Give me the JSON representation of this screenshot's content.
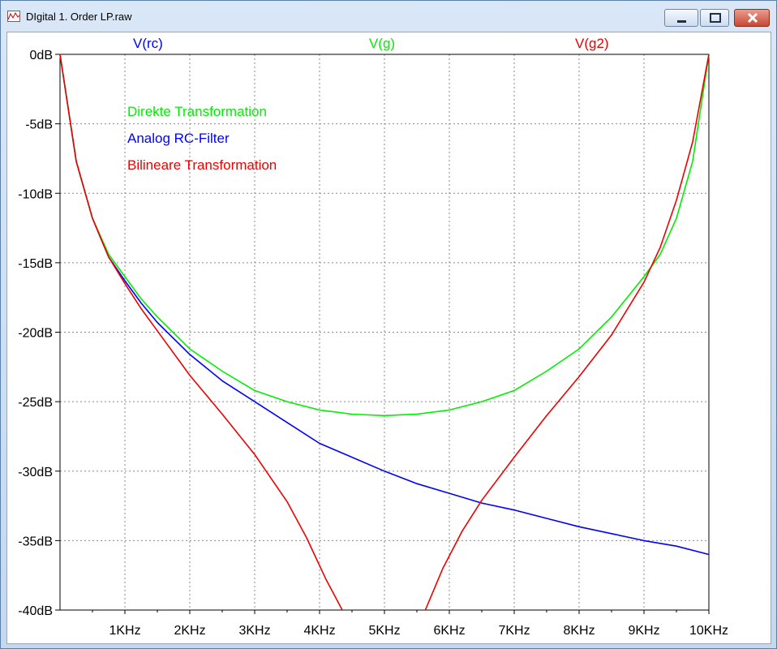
{
  "window": {
    "title": "DIgital 1. Order LP.raw",
    "controls": {
      "minimize": "minimize",
      "maximize": "maximize",
      "close": "close"
    }
  },
  "colors": {
    "rc": "#0000ff",
    "g": "#00ee00",
    "g2": "#ee0000",
    "grid": "#8a8a8a",
    "background": "#ffffff"
  },
  "chart_data": {
    "type": "line",
    "title": "",
    "xlabel": "",
    "ylabel": "",
    "xlim": [
      0,
      10000
    ],
    "ylim": [
      -40,
      0
    ],
    "grid": true,
    "x_ticks": [
      {
        "value": 1000,
        "label": "1KHz"
      },
      {
        "value": 2000,
        "label": "2KHz"
      },
      {
        "value": 3000,
        "label": "3KHz"
      },
      {
        "value": 4000,
        "label": "4KHz"
      },
      {
        "value": 5000,
        "label": "5KHz"
      },
      {
        "value": 6000,
        "label": "6KHz"
      },
      {
        "value": 7000,
        "label": "7KHz"
      },
      {
        "value": 8000,
        "label": "8KHz"
      },
      {
        "value": 9000,
        "label": "9KHz"
      },
      {
        "value": 10000,
        "label": "10KHz"
      }
    ],
    "y_ticks": [
      {
        "value": 0,
        "label": "0dB"
      },
      {
        "value": -5,
        "label": "-5dB"
      },
      {
        "value": -10,
        "label": "-10dB"
      },
      {
        "value": -15,
        "label": "-15dB"
      },
      {
        "value": -20,
        "label": "-20dB"
      },
      {
        "value": -25,
        "label": "-25dB"
      },
      {
        "value": -30,
        "label": "-30dB"
      },
      {
        "value": -35,
        "label": "-35dB"
      },
      {
        "value": -40,
        "label": "-40dB"
      }
    ],
    "trace_labels": [
      {
        "id": "rc",
        "label": "V(rc)",
        "color": "#0000ff"
      },
      {
        "id": "g",
        "label": "V(g)",
        "color": "#00ee00"
      },
      {
        "id": "g2",
        "label": "V(g2)",
        "color": "#ee0000"
      }
    ],
    "legend": {
      "placement": "top-left",
      "entries": [
        {
          "label": "Direkte Transformation",
          "color": "#00ee00"
        },
        {
          "label": "Analog RC-Filter",
          "color": "#0000ff"
        },
        {
          "label": "Bilineare Transformation",
          "color": "#ee0000"
        }
      ]
    },
    "series": [
      {
        "name": "V(rc)",
        "color": "#0000ff",
        "x": [
          0,
          250,
          500,
          750,
          1000,
          1250,
          1500,
          2000,
          2500,
          3000,
          3500,
          4000,
          4500,
          5000,
          5500,
          6000,
          6500,
          7000,
          7500,
          8000,
          8500,
          9000,
          9500,
          10000
        ],
        "y": [
          0,
          -7.7,
          -11.8,
          -14.6,
          -16.3,
          -17.9,
          -19.3,
          -21.6,
          -23.5,
          -25.0,
          -26.5,
          -28.0,
          -29.0,
          -30.0,
          -30.9,
          -31.6,
          -32.3,
          -32.8,
          -33.4,
          -34.0,
          -34.5,
          -35.0,
          -35.4,
          -36.0
        ]
      },
      {
        "name": "V(g)",
        "color": "#00ee00",
        "x": [
          0,
          250,
          500,
          750,
          1000,
          1250,
          1500,
          2000,
          2500,
          3000,
          3500,
          4000,
          4500,
          5000,
          5500,
          6000,
          6500,
          7000,
          7500,
          8000,
          8500,
          9000,
          9250,
          9500,
          9750,
          10000
        ],
        "y": [
          0,
          -7.7,
          -11.8,
          -14.4,
          -16.0,
          -17.6,
          -18.9,
          -21.2,
          -22.8,
          -24.2,
          -25.0,
          -25.6,
          -25.9,
          -26.0,
          -25.9,
          -25.6,
          -25.0,
          -24.2,
          -22.8,
          -21.2,
          -18.9,
          -16.0,
          -14.4,
          -11.8,
          -7.7,
          0
        ]
      },
      {
        "name": "V(g2)",
        "color": "#ee0000",
        "x": [
          0,
          250,
          500,
          750,
          1000,
          1250,
          1500,
          2000,
          2500,
          3000,
          3500,
          3800,
          4100,
          4350,
          5630,
          5900,
          6200,
          6500,
          7000,
          7500,
          8000,
          8500,
          9000,
          9250,
          9500,
          9750,
          10000
        ],
        "y": [
          0,
          -7.7,
          -11.8,
          -14.6,
          -16.5,
          -18.3,
          -19.9,
          -23.1,
          -25.9,
          -28.8,
          -32.2,
          -34.8,
          -37.8,
          -40.0,
          -40.0,
          -37.0,
          -34.3,
          -32.1,
          -29.0,
          -26.0,
          -23.2,
          -20.2,
          -16.4,
          -13.9,
          -10.5,
          -6.3,
          0
        ]
      }
    ]
  }
}
